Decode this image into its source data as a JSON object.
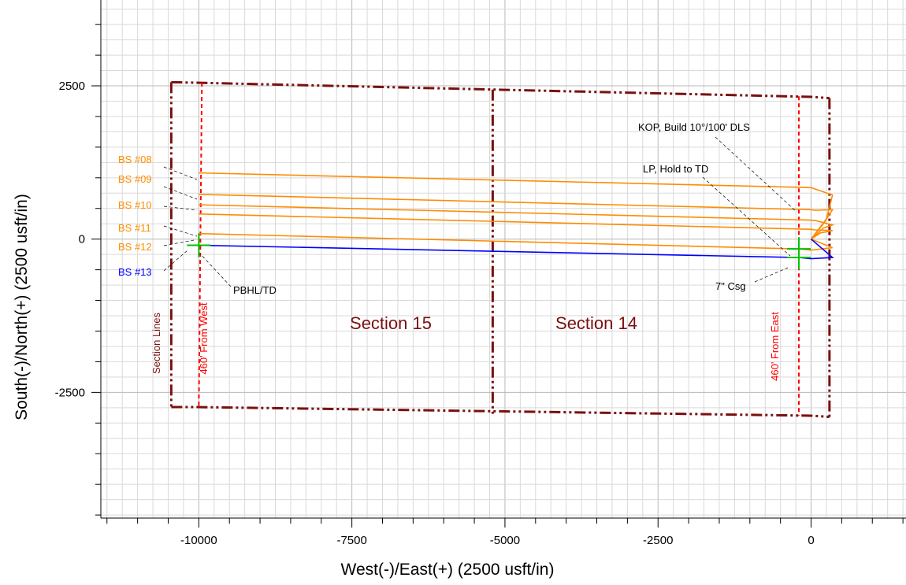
{
  "chart_data": {
    "type": "line",
    "title": "",
    "xlabel": "West(-)/East(+) (2500 usft/in)",
    "ylabel": "South(-)/North(+) (2500 usft/in)",
    "xlim": [
      -11600,
      1550
    ],
    "ylim": [
      -4550,
      3900
    ],
    "xticks": [
      -10000,
      -7500,
      -5000,
      -2500,
      0
    ],
    "xtick_labels": [
      "-10000",
      "-7500",
      "-5000",
      "-2500",
      "0"
    ],
    "yticks": [
      2500,
      0,
      -2500
    ],
    "ytick_labels": [
      "2500",
      "0",
      "-2500"
    ],
    "grid": true,
    "series": [
      {
        "name": "BS #08",
        "color": "#ff8c00",
        "x": [
          -10000,
          0,
          60,
          350,
          250,
          0
        ],
        "y": [
          1080,
          840,
          820,
          720,
          330,
          0
        ]
      },
      {
        "name": "BS #09",
        "color": "#ff8c00",
        "x": [
          -10000,
          0,
          60,
          350,
          200,
          0
        ],
        "y": [
          730,
          480,
          470,
          480,
          250,
          0
        ]
      },
      {
        "name": "BS #10",
        "color": "#ff8c00",
        "x": [
          -10000,
          0,
          80,
          350,
          200,
          0
        ],
        "y": [
          560,
          310,
          300,
          230,
          180,
          0
        ]
      },
      {
        "name": "BS #11",
        "color": "#ff8c00",
        "x": [
          -10000,
          0,
          60,
          350,
          150,
          0
        ],
        "y": [
          410,
          160,
          150,
          140,
          100,
          0
        ]
      },
      {
        "name": "BS #12",
        "color": "#ff8c00",
        "x": [
          -10000,
          -200,
          0,
          350,
          0
        ],
        "y": [
          90,
          -160,
          -180,
          -140,
          0
        ]
      },
      {
        "name": "BS #13",
        "color": "#0000ff",
        "x": [
          -10000,
          -200,
          0,
          350,
          0
        ],
        "y": [
          -100,
          -300,
          -320,
          -300,
          0
        ]
      }
    ],
    "section_lines": {
      "color": "#7a1010",
      "polylines": [
        {
          "x": [
            -10450,
            -10000,
            0,
            300
          ],
          "y": [
            2560,
            2550,
            2320,
            2300
          ]
        },
        {
          "x": [
            -10450,
            -10000,
            0,
            300
          ],
          "y": [
            -2740,
            -2740,
            -2880,
            -2900
          ]
        },
        {
          "x": [
            -10450,
            -10450
          ],
          "y": [
            2560,
            -2740
          ]
        },
        {
          "x": [
            -5200,
            -5200
          ],
          "y": [
            2440,
            -2850
          ]
        },
        {
          "x": [
            300,
            300
          ],
          "y": [
            2300,
            -2900
          ]
        }
      ]
    },
    "offset_lines": {
      "color": "#ff0000",
      "polylines": [
        {
          "x": [
            -9950,
            -10000
          ],
          "y": [
            2550,
            -2740
          ]
        },
        {
          "x": [
            -200,
            -200
          ],
          "y": [
            2330,
            -2880
          ]
        }
      ]
    },
    "markers": [
      {
        "x": -10000,
        "y": -100,
        "color": "#00c000"
      },
      {
        "x": -200,
        "y": -300,
        "color": "#00c000"
      },
      {
        "x": -200,
        "y": -160,
        "color": "#00c000"
      }
    ],
    "annotations": {
      "bs_labels": [
        "BS #08",
        "BS #09",
        "BS #10",
        "BS #11",
        "BS #12",
        "BS #13"
      ],
      "pbhl": "PBHL/TD",
      "kop": "KOP, Build 10°/100' DLS",
      "lp": "LP, Hold to TD",
      "csg": "7\" Csg",
      "section15": "Section 15",
      "section14": "Section 14",
      "section_lines": "Section Lines",
      "from_west": "460' From West",
      "from_east": "460' From East"
    }
  }
}
